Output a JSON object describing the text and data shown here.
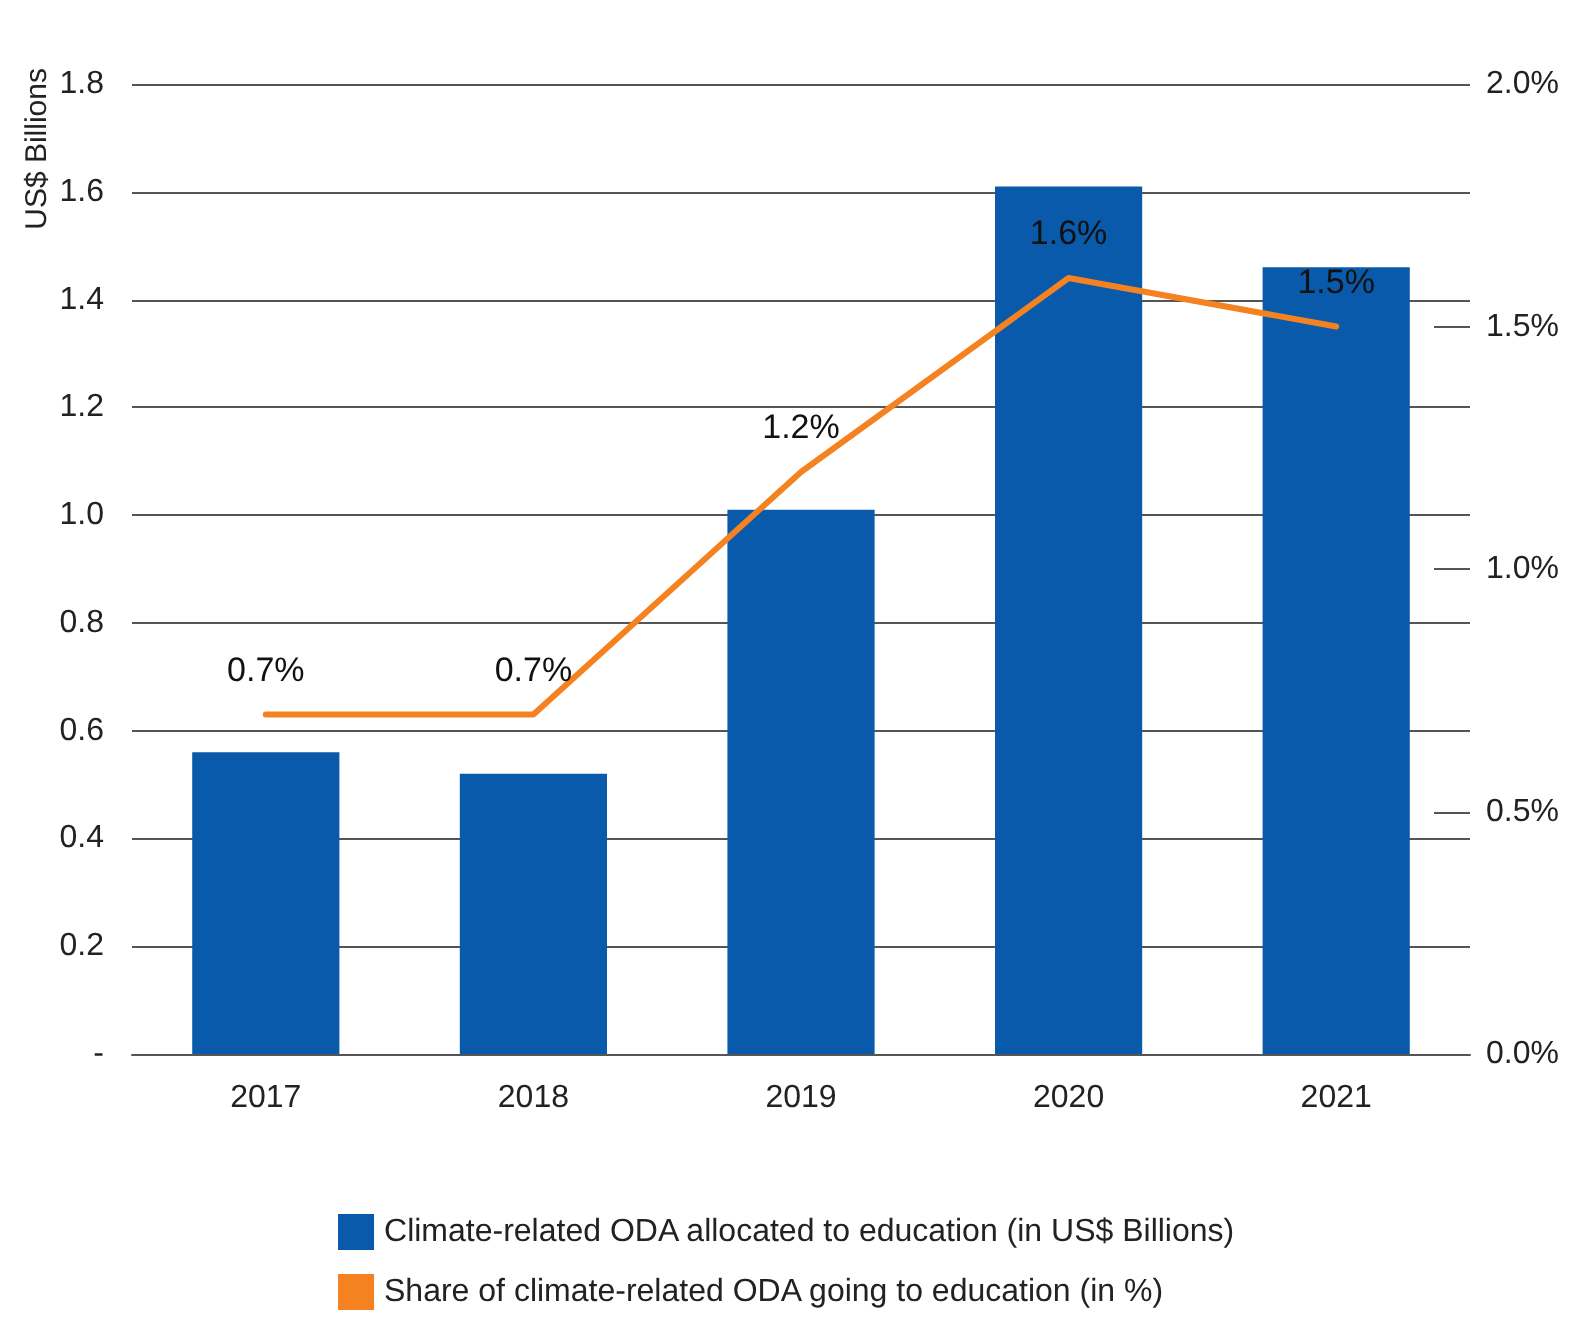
{
  "chart_data": {
    "type": "bar",
    "ylabel": "US$ Billions",
    "categories": [
      "2017",
      "2018",
      "2019",
      "2020",
      "2021"
    ],
    "series": [
      {
        "name": "Climate-related ODA allocated to education (in US$ Billions)",
        "color": "#0a5aab",
        "values": [
          0.56,
          0.52,
          1.01,
          1.61,
          1.46
        ]
      },
      {
        "name": "Share of climate-related ODA going to education (in %)",
        "type": "line",
        "axis": "y2",
        "color": "#f58220",
        "values": [
          0.7,
          0.7,
          1.2,
          1.6,
          1.5
        ],
        "value_labels": [
          "0.7%",
          "0.7%",
          "1.2%",
          "1.6%",
          "1.5%"
        ]
      }
    ],
    "ylim": [
      0,
      1.8
    ],
    "yticks": [
      {
        "value": 0,
        "label": "-"
      },
      {
        "value": 0.2,
        "label": "0.2"
      },
      {
        "value": 0.4,
        "label": "0.4"
      },
      {
        "value": 0.6,
        "label": "0.6"
      },
      {
        "value": 0.8,
        "label": "0.8"
      },
      {
        "value": 1.0,
        "label": "1.0"
      },
      {
        "value": 1.2,
        "label": "1.2"
      },
      {
        "value": 1.4,
        "label": "1.4"
      },
      {
        "value": 1.6,
        "label": "1.6"
      },
      {
        "value": 1.8,
        "label": "1.8"
      }
    ],
    "y2lim": [
      0,
      2
    ],
    "y2ticks": [
      {
        "value": 0,
        "label": "0.0%"
      },
      {
        "value": 0.5,
        "label": "0.5%"
      },
      {
        "value": 1,
        "label": "1.0%"
      },
      {
        "value": 1.5,
        "label": "1.5%"
      },
      {
        "value": 2,
        "label": "2.0%"
      }
    ],
    "grid": "y",
    "legend": "bottom",
    "marker": "none",
    "line_style": "solid"
  }
}
